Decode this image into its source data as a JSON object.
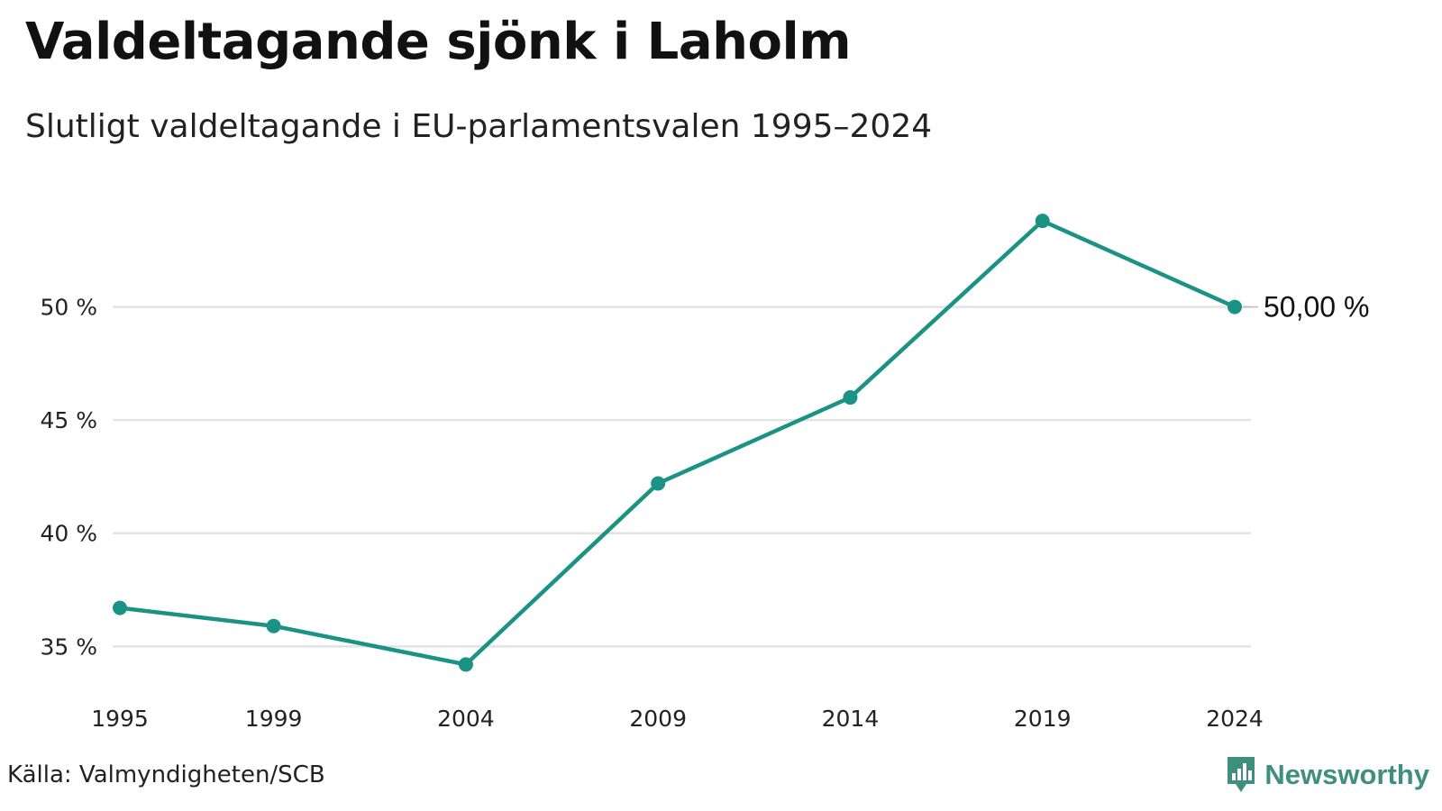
{
  "title": "Valdeltagande sjönk i Laholm",
  "subtitle": "Slutligt valdeltagande i EU-parlamentsvalen 1995–2024",
  "source": "Källa: Valmyndigheten/SCB",
  "brand": {
    "name": "Newsworthy",
    "icon": "newsworthy-logo-icon",
    "color": "#3f8f7f"
  },
  "chart_data": {
    "type": "line",
    "title": "Valdeltagande sjönk i Laholm",
    "subtitle": "Slutligt valdeltagande i EU-parlamentsvalen 1995–2024",
    "x": [
      1995,
      1999,
      2004,
      2009,
      2014,
      2019,
      2024
    ],
    "x_tick_labels": [
      "1995",
      "1999",
      "2004",
      "2009",
      "2014",
      "2019",
      "2024"
    ],
    "series": [
      {
        "values": [
          36.7,
          35.9,
          34.2,
          42.2,
          46.0,
          53.8,
          50.0
        ],
        "color": "#1a9384"
      }
    ],
    "y_ticks": [
      35,
      40,
      45,
      50
    ],
    "y_tick_labels": [
      "35 %",
      "40 %",
      "45 %",
      "50 %"
    ],
    "ylim": [
      33.5,
      55
    ],
    "grid": "horizontal",
    "end_label": "50,00 %",
    "gridline_color": "#e3e3e3"
  }
}
